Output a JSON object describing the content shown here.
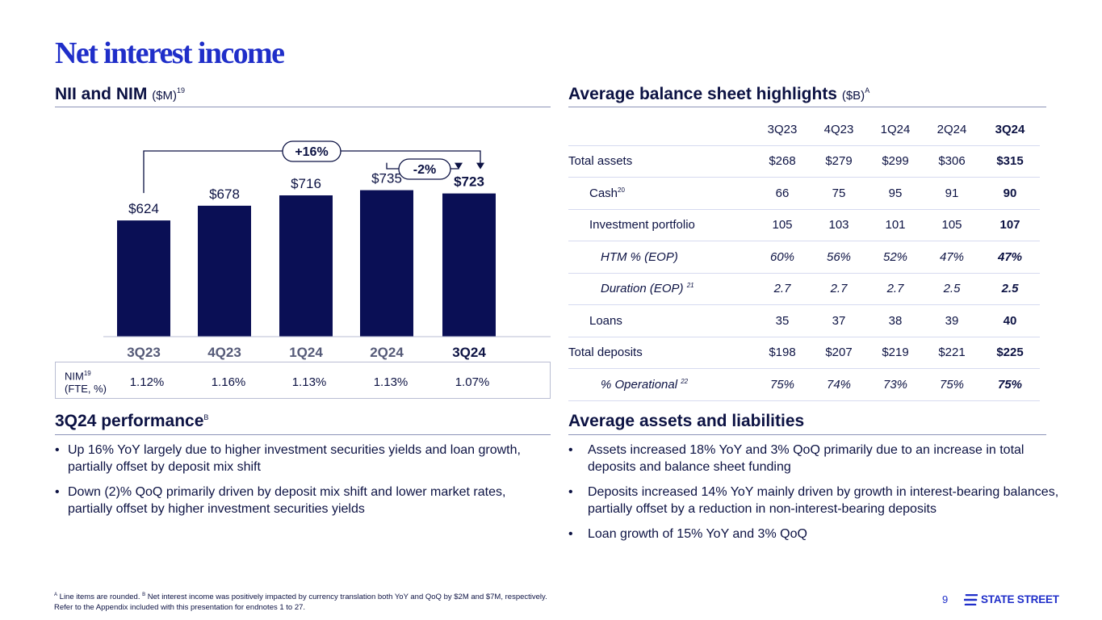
{
  "title": "Net interest income",
  "left_section": {
    "heading": "NII and NIM",
    "unit": "($M)",
    "sup": "19"
  },
  "chart_data": {
    "type": "bar",
    "categories": [
      "3Q23",
      "4Q23",
      "1Q24",
      "2Q24",
      "3Q24"
    ],
    "values": [
      624,
      678,
      716,
      735,
      723
    ],
    "value_labels": [
      "$624",
      "$678",
      "$716",
      "$735",
      "$723"
    ],
    "bar_color": "#0a0f55",
    "ylim": [
      0,
      800
    ],
    "annotations": [
      {
        "label": "+16%",
        "from": "3Q23",
        "to": "3Q24"
      },
      {
        "label": "-2%",
        "from": "2Q24",
        "to": "3Q24"
      }
    ],
    "highlight_category": "3Q24"
  },
  "nim": {
    "label": "NIM",
    "sup": "19",
    "sublabel": "(FTE, %)",
    "values": [
      "1.12%",
      "1.16%",
      "1.13%",
      "1.13%",
      "1.07%"
    ]
  },
  "right_section": {
    "heading": "Average balance sheet highlights",
    "unit": "($B)",
    "sup": "A"
  },
  "balance_table": {
    "columns": [
      "3Q23",
      "4Q23",
      "1Q24",
      "2Q24",
      "3Q24"
    ],
    "rows": [
      {
        "label": "Total assets",
        "sup": "",
        "values": [
          "$268",
          "$279",
          "$299",
          "$306",
          "$315"
        ]
      },
      {
        "label": "Cash",
        "sup": "20",
        "values": [
          "66",
          "75",
          "95",
          "91",
          "90"
        ]
      },
      {
        "label": "Investment portfolio",
        "sup": "",
        "values": [
          "105",
          "103",
          "101",
          "105",
          "107"
        ]
      },
      {
        "label": "HTM % (EOP)",
        "sup": "",
        "values": [
          "60%",
          "56%",
          "52%",
          "47%",
          "47%"
        ]
      },
      {
        "label": "Duration (EOP)",
        "sup": "21",
        "values": [
          "2.7",
          "2.7",
          "2.7",
          "2.5",
          "2.5"
        ]
      },
      {
        "label": "Loans",
        "sup": "",
        "values": [
          "35",
          "37",
          "38",
          "39",
          "40"
        ]
      },
      {
        "label": "Total deposits",
        "sup": "",
        "values": [
          "$198",
          "$207",
          "$219",
          "$221",
          "$225"
        ]
      },
      {
        "label": "% Operational",
        "sup": "22",
        "values": [
          "75%",
          "74%",
          "73%",
          "75%",
          "75%"
        ]
      }
    ]
  },
  "performance": {
    "heading": "3Q24 performance",
    "sup": "B",
    "bullets": [
      "Up 16% YoY largely due to higher investment securities yields and loan growth, partially offset by deposit mix shift",
      "Down (2)% QoQ primarily driven by deposit mix shift and lower market rates, partially offset by higher investment securities yields"
    ]
  },
  "assets_liabilities": {
    "heading": "Average assets and liabilities",
    "bullets": [
      "Assets increased 18% YoY and 3% QoQ primarily due to an increase in total deposits and balance sheet funding",
      "Deposits increased 14% YoY mainly driven by growth in interest-bearing balances, partially offset by a reduction in non-interest-bearing deposits",
      "Loan growth of 15% YoY and 3% QoQ"
    ]
  },
  "footnote": {
    "sup_a": "A",
    "text_a": "Line items are rounded.",
    "sup_b": "B",
    "text_b": "Net interest income was positively impacted by currency translation both YoY and QoQ by $2M and $7M, respectively.",
    "line2": "Refer to the Appendix included with this presentation for endnotes 1 to 27."
  },
  "page_number": "9",
  "brand": {
    "logo_text": "STATE STREET",
    "accent": "#1f2ec9",
    "navy": "#0c1243"
  }
}
